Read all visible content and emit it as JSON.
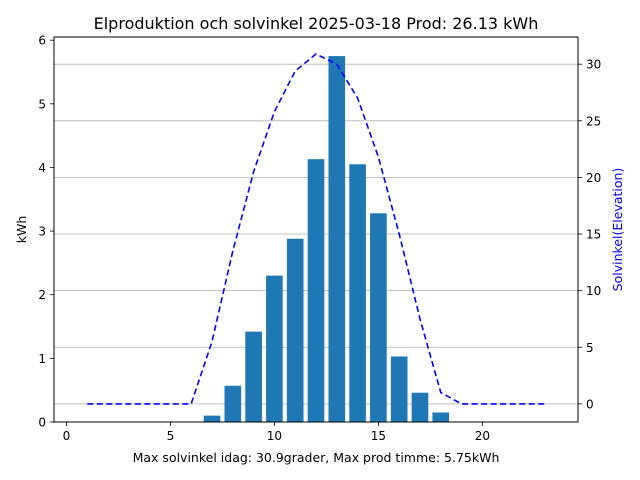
{
  "chart_data": {
    "type": "bar",
    "title": "Elproduktion och solvinkel 2025-03-18 Prod: 26.13 kWh",
    "xlabel": "Max solvinkel idag: 30.9grader, Max prod timme: 5.75kWh",
    "ylabel": "kWh",
    "y2label": "Solvinkel(Elevation)",
    "xlim": [
      -0.6,
      24.6
    ],
    "ylim": [
      0,
      6.05
    ],
    "y2lim": [
      -1.6,
      32.4
    ],
    "xticks": [
      "0",
      "5",
      "10",
      "15",
      "20"
    ],
    "yticks": [
      "0",
      "1",
      "2",
      "3",
      "4",
      "5",
      "6"
    ],
    "y2ticks": [
      "0",
      "5",
      "10",
      "15",
      "20",
      "25",
      "30"
    ],
    "grid": "right axis, horizontal lines",
    "bar_series": {
      "x": [
        7,
        8,
        9,
        10,
        11,
        12,
        13,
        14,
        15,
        16,
        17,
        18
      ],
      "values": [
        0.1,
        0.57,
        1.42,
        2.3,
        2.88,
        4.13,
        5.75,
        4.05,
        3.28,
        1.03,
        0.46,
        0.15
      ],
      "color": "#1f77b4"
    },
    "line_series": {
      "x": [
        1,
        2,
        3,
        4,
        5,
        6,
        7,
        8,
        9,
        10,
        11,
        12,
        13,
        14,
        15,
        16,
        17,
        18,
        19,
        20,
        21,
        22,
        23
      ],
      "values": [
        0,
        0,
        0,
        0,
        0,
        0,
        5.5,
        13.5,
        20.5,
        25.8,
        29.4,
        30.9,
        30.0,
        27.0,
        21.8,
        15.0,
        7.5,
        1.0,
        0,
        0,
        0,
        0,
        0
      ],
      "color": "#0000ff",
      "style": "dashed"
    }
  }
}
